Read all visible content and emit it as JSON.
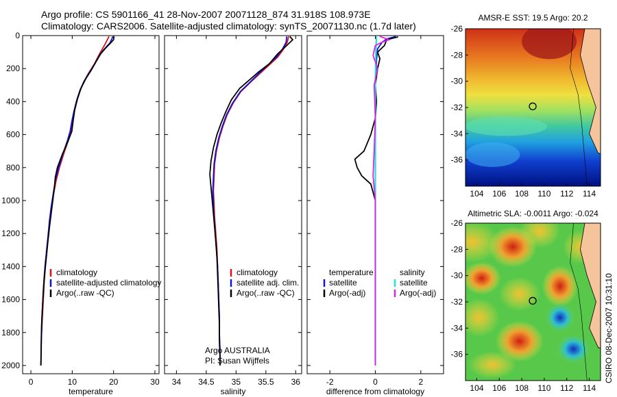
{
  "header": {
    "line1": "Argo profile: CS 5901166_41 28-Nov-2007 20071128_874 31.918S 108.973E",
    "line2": "Climatology: CARS2006. Satellite-adjusted climatology: synTS_20071130.nc (1.7d later)"
  },
  "side_stamp": "CSIRO 08-Dec-2007 10:31:10",
  "chart_data": [
    {
      "type": "line",
      "xlabel": "temperature",
      "xlim": [
        -2,
        31
      ],
      "ylim": [
        0,
        2050
      ],
      "xticks": [
        "0",
        "10",
        "20",
        "30"
      ],
      "yticks": [
        "0",
        "200",
        "400",
        "600",
        "800",
        "1000",
        "1200",
        "1400",
        "1600",
        "1800",
        "2000"
      ],
      "y_reversed": true,
      "legend": [
        "climatology",
        "satellite-adjusted climatology",
        "Argo(..raw -QC)"
      ],
      "series": [
        {
          "name": "climatology",
          "color": "#e01010",
          "points": [
            [
              18.9,
              5
            ],
            [
              18.6,
              20
            ],
            [
              18.0,
              50
            ],
            [
              17.3,
              80
            ],
            [
              16.6,
              110
            ],
            [
              15.4,
              170
            ],
            [
              13.9,
              230
            ],
            [
              12.8,
              280
            ],
            [
              12.0,
              330
            ],
            [
              11.2,
              390
            ],
            [
              10.5,
              460
            ],
            [
              10.0,
              520
            ],
            [
              9.6,
              580
            ],
            [
              9.0,
              640
            ],
            [
              7.9,
              720
            ],
            [
              6.9,
              800
            ],
            [
              6.1,
              880
            ],
            [
              5.5,
              960
            ],
            [
              5.0,
              1040
            ],
            [
              4.6,
              1120
            ],
            [
              4.3,
              1200
            ],
            [
              3.9,
              1300
            ],
            [
              3.5,
              1400
            ],
            [
              3.2,
              1500
            ],
            [
              3.0,
              1600
            ],
            [
              2.8,
              1700
            ],
            [
              2.6,
              1800
            ]
          ]
        },
        {
          "name": "satellite-adjusted climatology",
          "color": "#1010e0",
          "points": [
            [
              19.8,
              5
            ],
            [
              19.6,
              20
            ],
            [
              19.1,
              45
            ],
            [
              17.8,
              80
            ],
            [
              16.8,
              110
            ],
            [
              15.5,
              170
            ],
            [
              14.0,
              230
            ],
            [
              12.8,
              280
            ],
            [
              11.9,
              330
            ],
            [
              11.1,
              390
            ],
            [
              10.4,
              460
            ],
            [
              9.9,
              520
            ],
            [
              9.5,
              580
            ],
            [
              8.8,
              640
            ],
            [
              7.7,
              720
            ],
            [
              6.7,
              800
            ],
            [
              5.9,
              880
            ],
            [
              5.4,
              960
            ],
            [
              4.9,
              1040
            ],
            [
              4.5,
              1120
            ],
            [
              4.2,
              1200
            ],
            [
              3.8,
              1300
            ],
            [
              3.4,
              1400
            ],
            [
              3.1,
              1500
            ],
            [
              2.9,
              1600
            ],
            [
              2.7,
              1700
            ],
            [
              2.6,
              1800
            ],
            [
              2.5,
              1900
            ],
            [
              2.45,
              2000
            ]
          ]
        },
        {
          "name": "Argo(..raw -QC)",
          "color": "#000000",
          "points": [
            [
              20.1,
              5
            ],
            [
              20.0,
              25
            ],
            [
              19.3,
              45
            ],
            [
              18.1,
              75
            ],
            [
              16.9,
              110
            ],
            [
              15.7,
              160
            ],
            [
              14.6,
              210
            ],
            [
              13.3,
              260
            ],
            [
              12.1,
              320
            ],
            [
              11.3,
              380
            ],
            [
              10.6,
              450
            ],
            [
              10.2,
              520
            ],
            [
              9.9,
              580
            ],
            [
              9.0,
              640
            ],
            [
              7.6,
              720
            ],
            [
              6.4,
              800
            ],
            [
              5.9,
              860
            ],
            [
              5.7,
              920
            ],
            [
              5.3,
              1000
            ],
            [
              4.9,
              1080
            ],
            [
              4.5,
              1160
            ],
            [
              4.1,
              1250
            ],
            [
              3.7,
              1350
            ],
            [
              3.3,
              1450
            ],
            [
              3.0,
              1550
            ],
            [
              2.8,
              1650
            ],
            [
              2.6,
              1750
            ],
            [
              2.5,
              1850
            ],
            [
              2.45,
              1950
            ],
            [
              2.4,
              2000
            ]
          ]
        }
      ]
    },
    {
      "type": "line",
      "xlabel": "salinity",
      "xlim": [
        33.8,
        36.1
      ],
      "ylim": [
        0,
        2050
      ],
      "xticks": [
        "34",
        "34.5",
        "35",
        "35.5",
        "36"
      ],
      "y_reversed": true,
      "legend": [
        "climatology",
        "satellite adj. clim.",
        "Argo(..raw -QC)"
      ],
      "annotations": [
        "Argo AUSTRALIA",
        "PI: Susan Wijffels"
      ],
      "series": [
        {
          "name": "climatology",
          "color": "#e01010",
          "points": [
            [
              35.88,
              5
            ],
            [
              35.86,
              40
            ],
            [
              35.8,
              80
            ],
            [
              35.7,
              130
            ],
            [
              35.55,
              180
            ],
            [
              35.4,
              230
            ],
            [
              35.25,
              280
            ],
            [
              35.08,
              340
            ],
            [
              34.95,
              410
            ],
            [
              34.85,
              480
            ],
            [
              34.78,
              550
            ],
            [
              34.72,
              620
            ],
            [
              34.67,
              700
            ],
            [
              34.64,
              780
            ],
            [
              34.63,
              860
            ],
            [
              34.62,
              940
            ],
            [
              34.63,
              1020
            ],
            [
              34.64,
              1100
            ],
            [
              34.66,
              1200
            ],
            [
              34.68,
              1300
            ],
            [
              34.69,
              1400
            ],
            [
              34.7,
              1500
            ],
            [
              34.71,
              1600
            ],
            [
              34.72,
              1700
            ],
            [
              34.72,
              1800
            ]
          ]
        },
        {
          "name": "satellite adj. clim.",
          "color": "#1010e0",
          "points": [
            [
              35.85,
              5
            ],
            [
              35.84,
              40
            ],
            [
              35.78,
              80
            ],
            [
              35.68,
              130
            ],
            [
              35.53,
              180
            ],
            [
              35.38,
              230
            ],
            [
              35.24,
              280
            ],
            [
              35.07,
              340
            ],
            [
              34.94,
              410
            ],
            [
              34.84,
              480
            ],
            [
              34.77,
              550
            ],
            [
              34.71,
              620
            ],
            [
              34.66,
              700
            ],
            [
              34.63,
              780
            ],
            [
              34.62,
              860
            ],
            [
              34.61,
              940
            ],
            [
              34.62,
              1020
            ],
            [
              34.63,
              1100
            ],
            [
              34.65,
              1200
            ],
            [
              34.67,
              1300
            ],
            [
              34.69,
              1400
            ],
            [
              34.7,
              1500
            ],
            [
              34.71,
              1600
            ],
            [
              34.72,
              1700
            ],
            [
              34.72,
              1800
            ],
            [
              34.73,
              1900
            ],
            [
              34.73,
              2000
            ]
          ]
        },
        {
          "name": "Argo(..raw -QC)",
          "color": "#000000",
          "points": [
            [
              35.9,
              5
            ],
            [
              35.95,
              25
            ],
            [
              35.85,
              60
            ],
            [
              35.7,
              110
            ],
            [
              35.56,
              170
            ],
            [
              35.38,
              220
            ],
            [
              35.22,
              270
            ],
            [
              35.06,
              320
            ],
            [
              34.92,
              390
            ],
            [
              34.83,
              460
            ],
            [
              34.75,
              530
            ],
            [
              34.68,
              600
            ],
            [
              34.62,
              680
            ],
            [
              34.58,
              760
            ],
            [
              34.56,
              840
            ],
            [
              34.58,
              920
            ],
            [
              34.6,
              1000
            ],
            [
              34.62,
              1080
            ],
            [
              34.64,
              1160
            ],
            [
              34.66,
              1250
            ],
            [
              34.68,
              1350
            ],
            [
              34.69,
              1450
            ],
            [
              34.7,
              1550
            ],
            [
              34.71,
              1650
            ],
            [
              34.72,
              1750
            ],
            [
              34.72,
              1850
            ],
            [
              34.73,
              1950
            ],
            [
              34.73,
              2000
            ]
          ]
        }
      ]
    },
    {
      "type": "line",
      "xlabel": "difference from climatology",
      "xlim": [
        -3,
        3
      ],
      "ylim": [
        0,
        2050
      ],
      "xticks": [
        "-2",
        "0",
        "2"
      ],
      "y_reversed": true,
      "legend": [
        "temperature",
        "satellite",
        "Argo(-adj)",
        "salinity",
        "satellite",
        "Argo(-adj)"
      ],
      "series": [
        {
          "name": "temperature satellite",
          "color": "#1010e0",
          "points": [
            [
              0.9,
              5
            ],
            [
              0.5,
              20
            ],
            [
              0.3,
              40
            ],
            [
              0.1,
              80
            ],
            [
              0.05,
              150
            ],
            [
              0.0,
              300
            ],
            [
              0.0,
              600
            ],
            [
              0.0,
              1000
            ],
            [
              0.0,
              1500
            ],
            [
              0.0,
              2000
            ]
          ]
        },
        {
          "name": "temperature Argo(-adj)",
          "color": "#000000",
          "points": [
            [
              1.0,
              8
            ],
            [
              0.5,
              25
            ],
            [
              0.4,
              60
            ],
            [
              0.1,
              100
            ],
            [
              0.2,
              140
            ],
            [
              0.1,
              200
            ],
            [
              0.0,
              300
            ],
            [
              0.05,
              400
            ],
            [
              0.0,
              500
            ],
            [
              -0.2,
              600
            ],
            [
              -0.5,
              700
            ],
            [
              -0.9,
              750
            ],
            [
              -0.8,
              800
            ],
            [
              -0.6,
              850
            ],
            [
              -0.2,
              900
            ],
            [
              0.0,
              1000
            ],
            [
              0.0,
              1200
            ],
            [
              0.0,
              1500
            ],
            [
              0.0,
              1800
            ],
            [
              0.0,
              2000
            ]
          ]
        },
        {
          "name": "salinity satellite",
          "color": "#20e0e0",
          "points": [
            [
              0.05,
              5
            ],
            [
              0.02,
              100
            ],
            [
              0.0,
              300
            ],
            [
              0.0,
              600
            ],
            [
              0.0,
              1000
            ],
            [
              0.0,
              1500
            ],
            [
              0.0,
              2000
            ]
          ]
        },
        {
          "name": "salinity Argo(-adj)",
          "color": "#e020e0",
          "points": [
            [
              0.2,
              5
            ],
            [
              0.6,
              25
            ],
            [
              0.3,
              40
            ],
            [
              0.0,
              60
            ],
            [
              -0.1,
              120
            ],
            [
              0.1,
              200
            ],
            [
              -0.05,
              300
            ],
            [
              0.0,
              500
            ],
            [
              -0.05,
              700
            ],
            [
              -0.1,
              850
            ],
            [
              0.0,
              1000
            ],
            [
              0.0,
              1300
            ],
            [
              0.0,
              1700
            ],
            [
              0.0,
              2000
            ]
          ]
        }
      ]
    }
  ],
  "maps": [
    {
      "title": "AMSR-E SST: 19.5 Argo: 20.2",
      "xticks": [
        "104",
        "106",
        "108",
        "110",
        "112",
        "114"
      ],
      "yticks": [
        "-26",
        "-28",
        "-30",
        "-32",
        "-34",
        "-36"
      ],
      "xlim": [
        103,
        115
      ],
      "ylim": [
        -38,
        -26
      ],
      "marker": [
        108.973,
        -31.918
      ]
    },
    {
      "title": "Altimetric SLA: -0.0011 Argo: -0.024",
      "xticks": [
        "104",
        "106",
        "108",
        "110",
        "112",
        "114"
      ],
      "yticks": [
        "-26",
        "-28",
        "-30",
        "-32",
        "-34",
        "-36"
      ],
      "xlim": [
        103,
        115
      ],
      "ylim": [
        -38,
        -26
      ],
      "marker": [
        108.973,
        -31.918
      ]
    }
  ]
}
